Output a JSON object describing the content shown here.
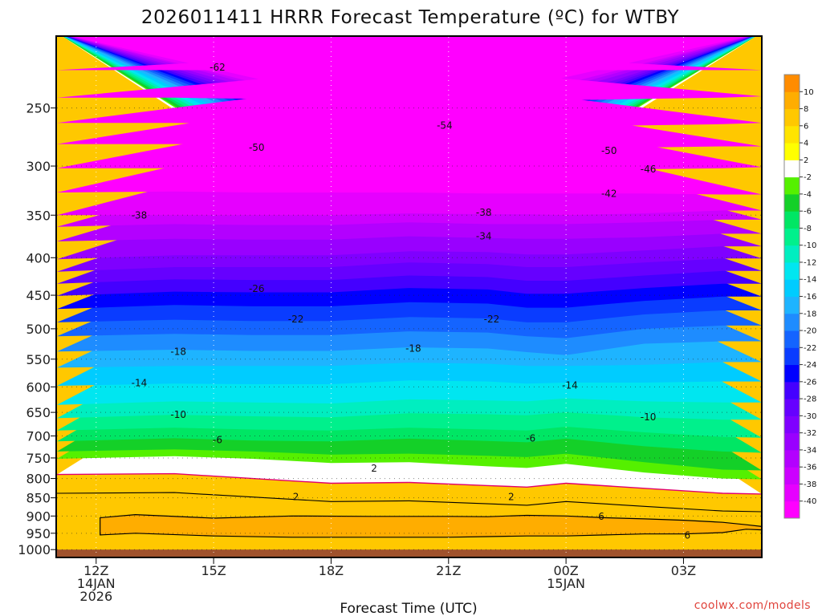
{
  "chart_data": {
    "type": "heatmap",
    "title": "2026011411 HRRR Forecast Temperature (ºC) for WTBY",
    "xlabel": "Forecast Time (UTC)",
    "ylabel": "",
    "x_ticks": [
      {
        "x": 0,
        "lines": [
          "12Z",
          "14JAN",
          "2026"
        ]
      },
      {
        "x": 3,
        "lines": [
          "15Z"
        ]
      },
      {
        "x": 6,
        "lines": [
          "18Z"
        ]
      },
      {
        "x": 9,
        "lines": [
          "21Z"
        ]
      },
      {
        "x": 12,
        "lines": [
          "00Z",
          "15JAN"
        ]
      },
      {
        "x": 15,
        "lines": [
          "03Z"
        ]
      }
    ],
    "xlim": [
      -1,
      17
    ],
    "y_ticks": [
      250,
      300,
      350,
      400,
      450,
      500,
      550,
      600,
      650,
      700,
      750,
      800,
      850,
      900,
      950,
      1000
    ],
    "ylim_hPa": [
      200,
      1025
    ],
    "y_scale": "log pressure",
    "grid": "dotted",
    "colorbar": {
      "location": "right",
      "levels": [
        -42,
        -40,
        -38,
        -36,
        -34,
        -32,
        -30,
        -28,
        -26,
        -24,
        -22,
        -20,
        -18,
        -16,
        -14,
        -12,
        -10,
        -8,
        -6,
        -4,
        -2,
        2,
        4,
        6,
        8,
        10,
        12
      ],
      "labels": [
        -40,
        -38,
        -36,
        -34,
        -32,
        -30,
        -28,
        -26,
        -24,
        -22,
        -20,
        -18,
        -16,
        -14,
        -12,
        -10,
        -8,
        -6,
        -4,
        -2,
        2,
        4,
        6,
        8,
        10
      ],
      "colors": [
        "#ff00ff",
        "#e600ff",
        "#cc00ff",
        "#b300ff",
        "#9900ff",
        "#7f00ff",
        "#6600ff",
        "#4400ff",
        "#0000ff",
        "#0a3cff",
        "#1464ff",
        "#1e8cff",
        "#1eb4ff",
        "#00ccff",
        "#00e6f0",
        "#00eec0",
        "#00f08c",
        "#00e664",
        "#14d028",
        "#55f000",
        "#ffffff",
        "#ffff00",
        "#ffe400",
        "#ffc800",
        "#ffad00",
        "#ff8c00"
      ]
    },
    "isotherm_profiles": [
      {
        "x": [
          -1,
          2,
          4,
          6,
          8,
          10,
          11,
          12,
          14,
          16,
          17
        ],
        "series": [
          {
            "t": 2,
            "p": [
              790,
              788,
              800,
              812,
              810,
              818,
              822,
              812,
              825,
              838,
              840
            ]
          },
          {
            "t": -2,
            "p": [
              752,
              746,
              752,
              762,
              760,
              770,
              774,
              764,
              785,
              800,
              802
            ]
          },
          {
            "t": -4,
            "p": [
              735,
              730,
              735,
              742,
              740,
              745,
              748,
              740,
              760,
              778,
              780
            ]
          },
          {
            "t": -6,
            "p": [
              712,
              705,
              710,
              712,
              706,
              711,
              714,
              706,
              723,
              735,
              738
            ]
          },
          {
            "t": -8,
            "p": [
              688,
              682,
              686,
              688,
              682,
              686,
              688,
              680,
              692,
              702,
              704
            ]
          },
          {
            "t": -10,
            "p": [
              662,
              655,
              658,
              660,
              652,
              654,
              656,
              650,
              660,
              665,
              665
            ]
          },
          {
            "t": -12,
            "p": [
              635,
              628,
              630,
              632,
              624,
              626,
              628,
              622,
              628,
              630,
              630
            ]
          },
          {
            "t": -14,
            "p": [
              598,
              594,
              595,
              595,
              588,
              590,
              594,
              592,
              592,
              590,
              590
            ]
          },
          {
            "t": -16,
            "p": [
              565,
              562,
              562,
              562,
              556,
              558,
              562,
              562,
              560,
              555,
              555
            ]
          },
          {
            "t": -18,
            "p": [
              537,
              534,
              536,
              536,
              530,
              532,
              538,
              543,
              524,
              520,
              520
            ]
          },
          {
            "t": -20,
            "p": [
              512,
              508,
              510,
              510,
              504,
              506,
              512,
              515,
              500,
              495,
              495
            ]
          },
          {
            "t": -22,
            "p": [
              490,
              486,
              488,
              488,
              482,
              484,
              490,
              490,
              478,
              472,
              472
            ]
          },
          {
            "t": -24,
            "p": [
              470,
              464,
              466,
              466,
              460,
              462,
              468,
              468,
              458,
              452,
              452
            ]
          },
          {
            "t": -26,
            "p": [
              451,
              445,
              446,
              446,
              440,
              442,
              448,
              448,
              440,
              434,
              434
            ]
          },
          {
            "t": -28,
            "p": [
              434,
              428,
              429,
              429,
              423,
              425,
              430,
              430,
              423,
              417,
              417
            ]
          },
          {
            "t": -30,
            "p": [
              418,
              412,
              412,
              412,
              406,
              408,
              412,
              412,
              406,
              401,
              401
            ]
          },
          {
            "t": -32,
            "p": [
              402,
              397,
              397,
              397,
              392,
              393,
              396,
              396,
              391,
              386,
              386
            ]
          },
          {
            "t": -34,
            "p": [
              380,
              377,
              378,
              378,
              374,
              376,
              377,
              377,
              375,
              371,
              371
            ]
          },
          {
            "t": -36,
            "p": [
              363,
              360,
              361,
              361,
              358,
              360,
              360,
              360,
              358,
              355,
              355
            ]
          },
          {
            "t": -38,
            "p": [
              350,
              350,
              350,
              350,
              348,
              349,
              349,
              350,
              348,
              345,
              345
            ]
          },
          {
            "t": -42,
            "p": [
              326,
              325,
              326,
              326,
              326,
              327,
              327,
              327,
              327,
              328,
              328
            ]
          },
          {
            "t": -46,
            "p": [
              302,
              302,
              303,
              303,
              303,
              304,
              304,
              304,
              303,
              302,
              301
            ]
          },
          {
            "t": -50,
            "p": [
              280,
              280,
              281,
              282,
              282,
              283,
              283,
              283,
              283,
              282,
              282
            ]
          },
          {
            "t": -54,
            "p": [
              262,
              262,
              263,
              264,
              264,
              265,
              265,
              265,
              264,
              263,
              262
            ]
          },
          {
            "t": -58,
            "p": [
              242,
              242,
              243,
              244,
              244,
              244,
              244,
              244,
              243,
              242,
              241
            ]
          },
          {
            "t": -62,
            "p": [
              222,
              222,
              222,
              222,
              222,
              222,
              222,
              222,
              222,
              222,
              222
            ]
          }
        ]
      }
    ],
    "warm_layer_6C": {
      "x": [
        0.1,
        1,
        3,
        5,
        7,
        9,
        10,
        11,
        12,
        13,
        14,
        15,
        16,
        16.6,
        17
      ],
      "bottom": [
        955,
        950,
        958,
        962,
        962,
        962,
        960,
        958,
        958,
        955,
        952,
        952,
        948,
        938,
        940
      ],
      "top": [
        905,
        896,
        906,
        900,
        901,
        901,
        902,
        898,
        900,
        905,
        908,
        912,
        918,
        925,
        930
      ]
    },
    "contour_labels": [
      {
        "text": "-62",
        "x": 3.1,
        "p": 220
      },
      {
        "text": "-54",
        "x": 8.9,
        "p": 264
      },
      {
        "text": "-50",
        "x": 4.1,
        "p": 283
      },
      {
        "text": "-50",
        "x": 13.1,
        "p": 286
      },
      {
        "text": "-46",
        "x": 14.1,
        "p": 303
      },
      {
        "text": "-42",
        "x": 13.1,
        "p": 327
      },
      {
        "text": "-38",
        "x": 1.1,
        "p": 350
      },
      {
        "text": "-38",
        "x": 9.9,
        "p": 347
      },
      {
        "text": "-34",
        "x": 9.9,
        "p": 374
      },
      {
        "text": "-26",
        "x": 4.1,
        "p": 441
      },
      {
        "text": "-22",
        "x": 5.1,
        "p": 485
      },
      {
        "text": "-22",
        "x": 10.1,
        "p": 485
      },
      {
        "text": "-18",
        "x": 2.1,
        "p": 537
      },
      {
        "text": "-18",
        "x": 8.1,
        "p": 532
      },
      {
        "text": "-14",
        "x": 1.1,
        "p": 593
      },
      {
        "text": "-14",
        "x": 12.1,
        "p": 597
      },
      {
        "text": "-10",
        "x": 2.1,
        "p": 655
      },
      {
        "text": "-10",
        "x": 14.1,
        "p": 660
      },
      {
        "text": "-6",
        "x": 3.1,
        "p": 709
      },
      {
        "text": "-6",
        "x": 11.1,
        "p": 705
      },
      {
        "text": "2",
        "x": 7.1,
        "p": 775
      },
      {
        "text": "2",
        "x": 5.1,
        "p": 848
      },
      {
        "text": "2",
        "x": 10.6,
        "p": 848
      },
      {
        "text": "6",
        "x": 12.9,
        "p": 902
      },
      {
        "text": "6",
        "x": 15.1,
        "p": 956
      }
    ],
    "credit": "coolwx.com/models"
  }
}
